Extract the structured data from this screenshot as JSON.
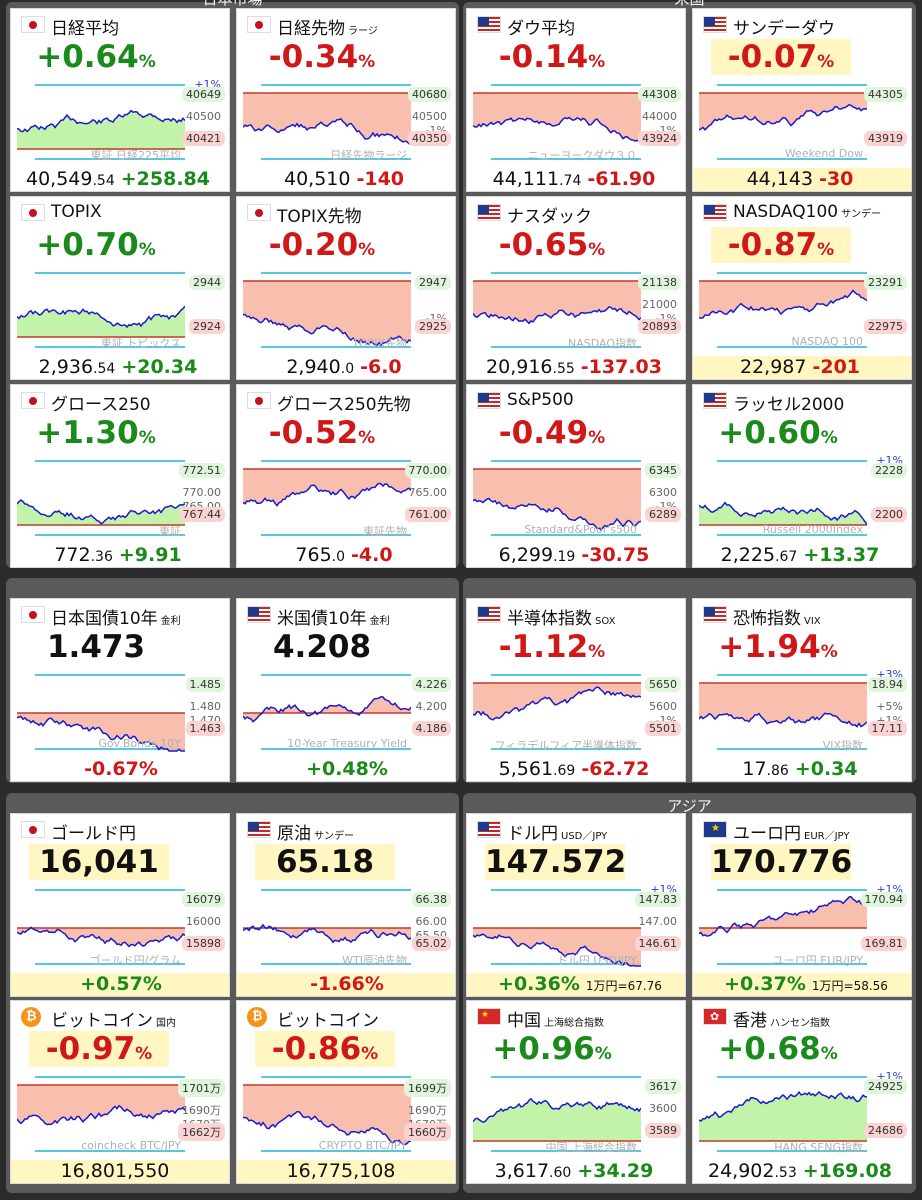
{
  "groups": [
    {
      "title": "日本市場"
    },
    {
      "title": "米国"
    },
    {
      "title": ""
    },
    {
      "title": ""
    },
    {
      "title": ""
    },
    {
      "title": "アジア"
    }
  ],
  "colors": {
    "up": "#1a8a1a",
    "down": "#d01818",
    "fill_up": "#b8f09a",
    "fill_down": "#f7b3a0",
    "line": "#1a1ad0"
  },
  "tiles": [
    {
      "flag": "jp",
      "title": "日経平均",
      "sub": "",
      "pct": "+0.64",
      "dir": "up",
      "r_top": "40649",
      "r_mid": "40500",
      "r_bot": "40421",
      "r_pl": "+1%",
      "r_mi": "",
      "wm": "東証 日経225平均",
      "price": "40,549",
      "dec": ".54",
      "chg": "+258.84",
      "extra": "",
      "night": false
    },
    {
      "flag": "jp",
      "title": "日経先物",
      "sub": "ラージ",
      "pct": "-0.34",
      "dir": "down",
      "r_top": "40680",
      "r_mid": "40500",
      "r_bot": "40350",
      "r_pl": "",
      "r_mi": "-1%",
      "wm": "日経先物ラージ",
      "price": "40,510",
      "dec": "",
      "chg": "-140",
      "extra": "",
      "night": false
    },
    {
      "flag": "us",
      "title": "ダウ平均",
      "sub": "",
      "pct": "-0.14",
      "dir": "down",
      "r_top": "44308",
      "r_mid": "44000",
      "r_bot": "43924",
      "r_pl": "",
      "r_mi": "-1%",
      "wm": "ニューヨークダウ３０",
      "price": "44,111",
      "dec": ".74",
      "chg": "-61.90",
      "extra": "",
      "night": false
    },
    {
      "flag": "us",
      "title": "サンデーダウ",
      "sub": "",
      "pct": "-0.07",
      "dir": "down",
      "r_top": "44305",
      "r_mid": "",
      "r_bot": "43919",
      "r_pl": "",
      "r_mi": "",
      "wm": "Weekend Dow",
      "price": "44,143",
      "dec": "",
      "chg": "-30",
      "extra": "",
      "night": true
    },
    {
      "flag": "jp",
      "title": "TOPIX",
      "sub": "",
      "pct": "+0.70",
      "dir": "up",
      "r_top": "2944",
      "r_mid": "",
      "r_bot": "2924",
      "r_pl": "",
      "r_mi": "",
      "wm": "東証 トピックス",
      "price": "2,936",
      "dec": ".54",
      "chg": "+20.34",
      "extra": "",
      "night": false
    },
    {
      "flag": "jp",
      "title": "TOPIX先物",
      "sub": "",
      "pct": "-0.20",
      "dir": "down",
      "r_top": "2947",
      "r_mid": "",
      "r_bot": "2925",
      "r_pl": "",
      "r_mi": "-1%",
      "wm": "TOPIX先物",
      "price": "2,940",
      "dec": ".0",
      "chg": "-6.0",
      "extra": "",
      "night": false
    },
    {
      "flag": "us",
      "title": "ナスダック",
      "sub": "",
      "pct": "-0.65",
      "dir": "down",
      "r_top": "21138",
      "r_mid": "21000",
      "r_bot": "20893",
      "r_pl": "",
      "r_mi": "-1%",
      "wm": "NASDAQ指数",
      "price": "20,916",
      "dec": ".55",
      "chg": "-137.03",
      "extra": "",
      "night": false
    },
    {
      "flag": "us",
      "title": "NASDAQ100",
      "sub": "サンデー",
      "pct": "-0.87",
      "dir": "down",
      "r_top": "23291",
      "r_mid": "",
      "r_bot": "22975",
      "r_pl": "",
      "r_mi": "",
      "wm": "NASDAQ 100",
      "price": "22,987",
      "dec": "",
      "chg": "-201",
      "extra": "",
      "night": true
    },
    {
      "flag": "jp",
      "title": "グロース250",
      "sub": "",
      "pct": "+1.30",
      "dir": "up",
      "r_top": "772.51",
      "r_mid": "770.00",
      "r_bot": "767.44",
      "r_pl": "",
      "r_mi": "765.00",
      "wm": "東証",
      "price": "772",
      "dec": ".36",
      "chg": "+9.91",
      "extra": "",
      "night": false
    },
    {
      "flag": "jp",
      "title": "グロース250先物",
      "sub": "",
      "pct": "-0.52",
      "dir": "down",
      "r_top": "770.00",
      "r_mid": "765.00",
      "r_bot": "761.00",
      "r_pl": "",
      "r_mi": "",
      "wm": "東証先物",
      "price": "765",
      "dec": ".0",
      "chg": "-4.0",
      "extra": "",
      "night": false
    },
    {
      "flag": "us",
      "title": "S&P500",
      "sub": "",
      "pct": "-0.49",
      "dir": "down",
      "r_top": "6345",
      "r_mid": "6300",
      "r_bot": "6289",
      "r_pl": "",
      "r_mi": "-1%",
      "wm": "Standard&Poor's500",
      "price": "6,299",
      "dec": ".19",
      "chg": "-30.75",
      "extra": "",
      "night": false
    },
    {
      "flag": "us",
      "title": "ラッセル2000",
      "sub": "",
      "pct": "+0.60",
      "dir": "up",
      "r_top": "2228",
      "r_mid": "",
      "r_bot": "2200",
      "r_pl": "+1%",
      "r_mi": "",
      "wm": "Russell 2000Index",
      "price": "2,225",
      "dec": ".67",
      "chg": "+13.37",
      "extra": "",
      "night": false
    },
    {
      "flag": "jp",
      "title": "日本国債10年",
      "sub": "金利",
      "pct": "1.473",
      "dir": "level",
      "r_top": "1.485",
      "r_mid": "1.480",
      "r_bot": "1.463",
      "r_pl": "",
      "r_mi": "1.470",
      "wm": "Gov.Bonds 10Y",
      "price": "",
      "dec": "",
      "chg": "-0.67%",
      "extra": "",
      "night": false
    },
    {
      "flag": "us",
      "title": "米国債10年",
      "sub": "金利",
      "pct": "4.208",
      "dir": "level",
      "r_top": "4.226",
      "r_mid": "4.200",
      "r_bot": "4.186",
      "r_pl": "",
      "r_mi": "",
      "wm": "10-Year Treasury Yield",
      "price": "",
      "dec": "",
      "chg": "+0.48%",
      "extra": "",
      "night": false
    },
    {
      "flag": "us",
      "title": "半導体指数",
      "sub": "SOX",
      "pct": "-1.12",
      "dir": "down",
      "r_top": "5650",
      "r_mid": "5600",
      "r_bot": "5501",
      "r_pl": "",
      "r_mi": "-1%",
      "wm": "フィラデルフィア半導体指数",
      "price": "5,561",
      "dec": ".69",
      "chg": "-62.72",
      "extra": "",
      "night": false
    },
    {
      "flag": "us",
      "title": "恐怖指数",
      "sub": "VIX",
      "pct": "+1.94",
      "dir": "down",
      "r_top": "18.94",
      "r_mid": "+5%",
      "r_bot": "17.11",
      "r_pl": "+3%",
      "r_mi": "+1%",
      "wm": "VIX指数",
      "price": "17",
      "dec": ".86",
      "chg": "+0.34",
      "extra": "",
      "night": false
    },
    {
      "flag": "jp",
      "title": "ゴールド円",
      "sub": "",
      "pct": "16,041",
      "dir": "level",
      "r_top": "16079",
      "r_mid": "16000",
      "r_bot": "15898",
      "r_pl": "",
      "r_mi": "",
      "wm": "ゴールド円/グラム",
      "price": "",
      "dec": "",
      "chg": "+0.57%",
      "extra": "",
      "night": true
    },
    {
      "flag": "us",
      "title": "原油",
      "sub": "サンデー",
      "pct": "65.18",
      "dir": "level",
      "r_top": "66.38",
      "r_mid": "66.00",
      "r_bot": "65.02",
      "r_pl": "",
      "r_mi": "65.50",
      "wm": "WTI原油先物",
      "price": "",
      "dec": "",
      "chg": "-1.66%",
      "extra": "",
      "night": true
    },
    {
      "flag": "us",
      "title": "ドル円",
      "sub": "USD／JPY",
      "pct": "147.572",
      "dir": "level",
      "r_top": "147.83",
      "r_mid": "147.00",
      "r_bot": "146.61",
      "r_pl": "+1%",
      "r_mi": "",
      "wm": "ドル円 USD/JPY",
      "price": "",
      "dec": "",
      "chg": "+0.36%",
      "extra": "1万円=67.76",
      "night": true
    },
    {
      "flag": "eu",
      "title": "ユーロ円",
      "sub": "EUR／JPY",
      "pct": "170.776",
      "dir": "level",
      "r_top": "170.94",
      "r_mid": "",
      "r_bot": "169.81",
      "r_pl": "+1%",
      "r_mi": "",
      "wm": "ユーロ円 EUR/JPY",
      "price": "",
      "dec": "",
      "chg": "+0.37%",
      "extra": "1万円=58.56",
      "night": true
    },
    {
      "flag": "btc",
      "title": "ビットコイン",
      "sub": "国内",
      "pct": "-0.97",
      "dir": "down",
      "r_top": "1701万",
      "r_mid": "1690万",
      "r_bot": "1662万",
      "r_pl": "",
      "r_mi": "1670万",
      "wm": "coincheck BTC/JPY",
      "price": "16,801,550",
      "dec": "",
      "chg": "",
      "extra": "",
      "night": true
    },
    {
      "flag": "btc",
      "title": "ビットコイン",
      "sub": "",
      "pct": "-0.86",
      "dir": "down",
      "r_top": "1699万",
      "r_mid": "1690万",
      "r_bot": "1660万",
      "r_pl": "",
      "r_mi": "1670万",
      "wm": "CRYPTO BTC/JPY",
      "price": "16,775,108",
      "dec": "",
      "chg": "",
      "extra": "",
      "night": true
    },
    {
      "flag": "cn",
      "title": "中国",
      "sub": "上海総合指数",
      "pct": "+0.96",
      "dir": "up",
      "r_top": "3617",
      "r_mid": "3600",
      "r_bot": "3589",
      "r_pl": "",
      "r_mi": "",
      "wm": "中国 上海総合指数",
      "price": "3,617",
      "dec": ".60",
      "chg": "+34.29",
      "extra": "",
      "night": false
    },
    {
      "flag": "hk",
      "title": "香港",
      "sub": "ハンセン指数",
      "pct": "+0.68",
      "dir": "up",
      "r_top": "24925",
      "r_mid": "",
      "r_bot": "24686",
      "r_pl": "+1%",
      "r_mi": "",
      "wm": "HANG SENG指数",
      "price": "24,902",
      "dec": ".53",
      "chg": "+169.08",
      "extra": "",
      "night": false
    }
  ]
}
